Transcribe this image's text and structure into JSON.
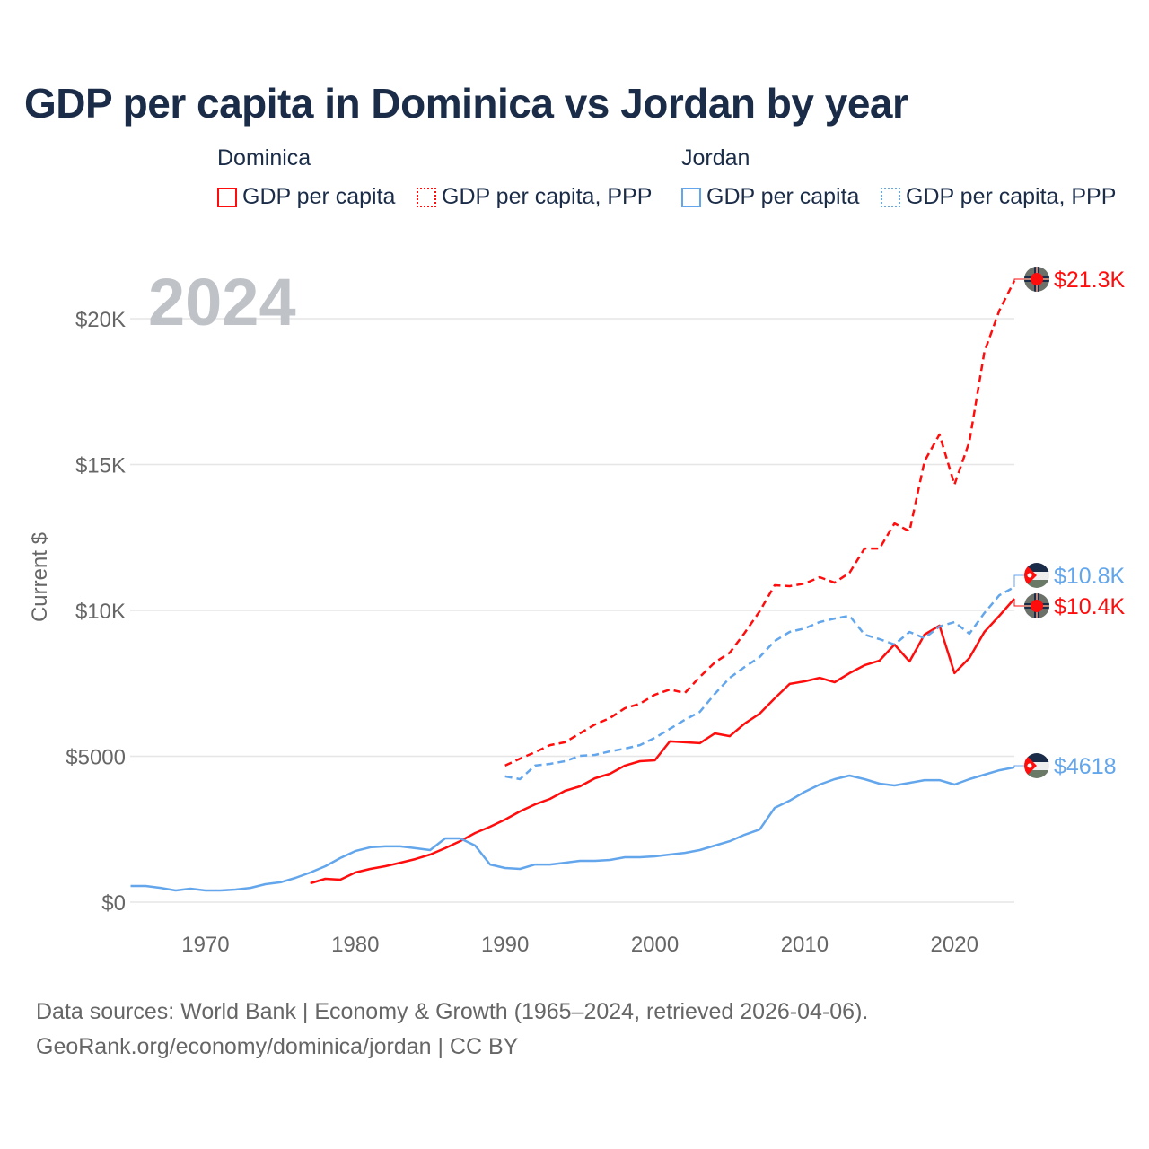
{
  "title": "GDP per capita in Dominica vs Jordan by year",
  "legend": {
    "groups": [
      {
        "name": "Dominica",
        "items": [
          "GDP per capita",
          "GDP per capita, PPP"
        ]
      },
      {
        "name": "Jordan",
        "items": [
          "GDP per capita",
          "GDP per capita, PPP"
        ]
      }
    ]
  },
  "colors": {
    "dominica": "#ff0d0d",
    "jordan": "#63a6ec",
    "grid": "#e6e6e6",
    "axis_text": "#666666",
    "year_watermark": "#bfc3c8"
  },
  "year_watermark": "2024",
  "footer": {
    "line1": "Data sources: World Bank | Economy & Growth (1965–2024, retrieved 2026-04-06).",
    "line2": "GeoRank.org/economy/dominica/jordan | CC BY"
  },
  "chart_data": {
    "type": "line",
    "title": "GDP per capita in Dominica vs Jordan by year",
    "xlabel": "",
    "ylabel": "Current $",
    "xlim": [
      1965,
      2024
    ],
    "ylim": [
      0,
      21300
    ],
    "x_ticks": [
      1970,
      1980,
      1990,
      2000,
      2010,
      2020
    ],
    "y_ticks": [
      {
        "v": 0,
        "label": "$0"
      },
      {
        "v": 5000,
        "label": "$5000"
      },
      {
        "v": 10000,
        "label": "$10K"
      },
      {
        "v": 15000,
        "label": "$15K"
      },
      {
        "v": 20000,
        "label": "$20K"
      }
    ],
    "grid": true,
    "legend_position": "top",
    "series": [
      {
        "name": "Dominica GDP per capita",
        "country": "dominica",
        "dash": false,
        "start": 1977,
        "end_label": "$10.4K",
        "values": [
          646,
          800,
          770,
          1015,
          1140,
          1230,
          1350,
          1475,
          1630,
          1850,
          2090,
          2370,
          2585,
          2830,
          3110,
          3350,
          3540,
          3815,
          3970,
          4245,
          4400,
          4680,
          4830,
          4860,
          5510,
          5480,
          5450,
          5785,
          5690,
          6120,
          6460,
          6985,
          7480,
          7570,
          7690,
          7540,
          7850,
          8120,
          8280,
          8830,
          8250,
          9170,
          9480,
          7850,
          8370,
          9260,
          9815,
          10400
        ]
      },
      {
        "name": "Dominica GDP per capita, PPP",
        "country": "dominica",
        "dash": true,
        "start": 1990,
        "end_label": "$21.3K",
        "values": [
          4680,
          4920,
          5140,
          5380,
          5480,
          5785,
          6090,
          6310,
          6650,
          6800,
          7110,
          7290,
          7170,
          7720,
          8215,
          8550,
          9230,
          9970,
          10860,
          10830,
          10920,
          11140,
          10950,
          11290,
          12120,
          12120,
          12980,
          12710,
          15110,
          16030,
          14310,
          15780,
          18860,
          20280,
          21300
        ]
      },
      {
        "name": "Jordan GDP per capita",
        "country": "jordan",
        "dash": false,
        "start": 1965,
        "end_label": "$4618",
        "values": [
          554,
          554,
          490,
          400,
          460,
          400,
          400,
          430,
          490,
          615,
          680,
          830,
          1015,
          1230,
          1510,
          1750,
          1880,
          1910,
          1910,
          1850,
          1785,
          2185,
          2185,
          1940,
          1290,
          1170,
          1140,
          1290,
          1290,
          1350,
          1415,
          1415,
          1445,
          1540,
          1540,
          1570,
          1630,
          1690,
          1785,
          1940,
          2090,
          2310,
          2490,
          3230,
          3480,
          3780,
          4030,
          4215,
          4340,
          4215,
          4060,
          4000,
          4090,
          4180,
          4180,
          4030,
          4215,
          4370,
          4520,
          4618
        ]
      },
      {
        "name": "Jordan GDP per capita, PPP",
        "country": "jordan",
        "dash": true,
        "start": 1990,
        "end_label": "$10.8K",
        "values": [
          4310,
          4215,
          4680,
          4740,
          4830,
          5015,
          5045,
          5170,
          5260,
          5380,
          5630,
          5940,
          6250,
          6520,
          7140,
          7690,
          8060,
          8400,
          8950,
          9260,
          9380,
          9600,
          9720,
          9815,
          9170,
          9015,
          8830,
          9260,
          9050,
          9450,
          9600,
          9200,
          9910,
          10520,
          10800
        ]
      }
    ]
  }
}
